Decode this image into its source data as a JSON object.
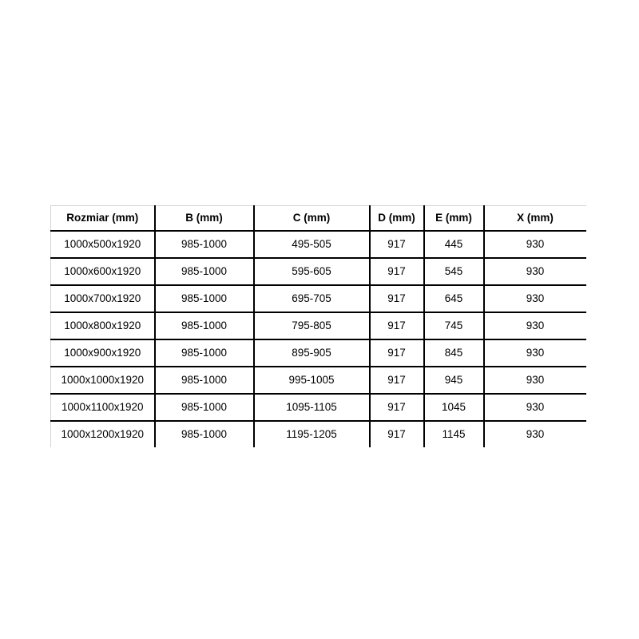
{
  "chart_data": {
    "type": "table",
    "title": "",
    "columns": [
      "Rozmiar (mm)",
      "B (mm)",
      "C (mm)",
      "D (mm)",
      "E (mm)",
      "X (mm)"
    ],
    "rows": [
      [
        "1000x500x1920",
        "985-1000",
        "495-505",
        "917",
        "445",
        "930"
      ],
      [
        "1000x600x1920",
        "985-1000",
        "595-605",
        "917",
        "545",
        "930"
      ],
      [
        "1000x700x1920",
        "985-1000",
        "695-705",
        "917",
        "645",
        "930"
      ],
      [
        "1000x800x1920",
        "985-1000",
        "795-805",
        "917",
        "745",
        "930"
      ],
      [
        "1000x900x1920",
        "985-1000",
        "895-905",
        "917",
        "845",
        "930"
      ],
      [
        "1000x1000x1920",
        "985-1000",
        "995-1005",
        "917",
        "945",
        "930"
      ],
      [
        "1000x1100x1920",
        "985-1000",
        "1095-1105",
        "917",
        "1045",
        "930"
      ],
      [
        "1000x1200x1920",
        "985-1000",
        "1195-1205",
        "917",
        "1145",
        "930"
      ]
    ],
    "layout_hints": {
      "grid": "inner black lines, light grey top and left outer border, no right or bottom outer border",
      "header_style": "bold, centered",
      "cell_alignment": "center"
    }
  },
  "colors": {
    "background": "#ffffff",
    "grid_line": "#000000",
    "outer_border": "#d4d4d4",
    "text": "#000000"
  }
}
